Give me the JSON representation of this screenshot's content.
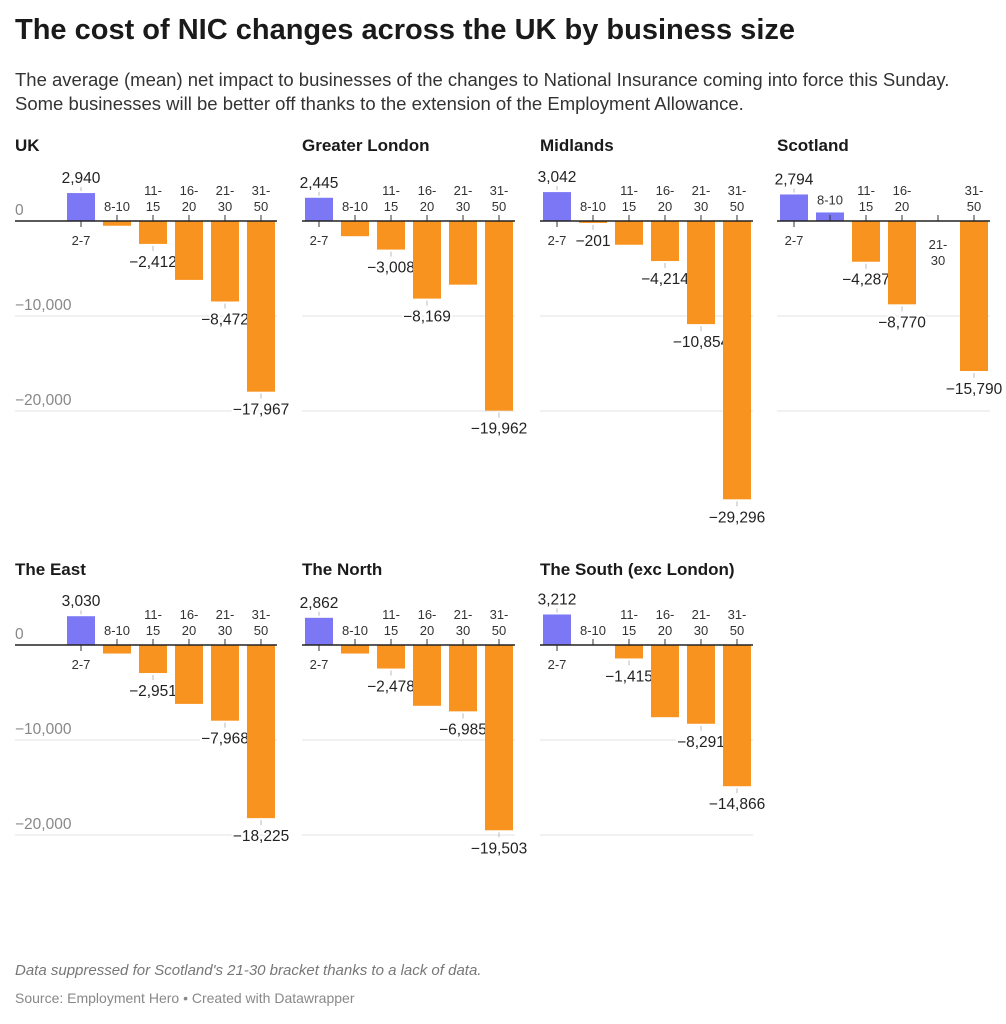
{
  "title": "The cost of NIC changes across the UK by business size",
  "subtitle": "The average (mean) net impact to businesses of the changes to National Insurance coming into force this Sunday. Some businesses will be better off thanks to the extension of the Employment Allowance.",
  "note": "Data suppressed for Scotland's 21-30 bracket thanks to a lack of data.",
  "source": "Source: Employment Hero • Created with Datawrapper",
  "colors": {
    "positive": "#7b77f5",
    "negative": "#f7931e"
  },
  "chart_data": {
    "type": "bar",
    "categories": [
      "2-7",
      "8-10",
      "11-15",
      "16-20",
      "21-30",
      "31-50"
    ],
    "y_ticks": [
      0,
      -10000,
      -20000
    ],
    "y_tick_labels": [
      "0",
      "−10,000",
      "−20,000"
    ],
    "grid": true,
    "panels": [
      {
        "name": "UK",
        "values": [
          2940,
          -500,
          -2412,
          -6200,
          -8472,
          -17967
        ],
        "labeled": [
          0,
          2,
          4,
          5
        ]
      },
      {
        "name": "Greater London",
        "values": [
          2445,
          -1600,
          -3008,
          -8169,
          -6700,
          -19962
        ],
        "labeled": [
          0,
          2,
          3,
          5
        ]
      },
      {
        "name": "Midlands",
        "values": [
          3042,
          -201,
          -2500,
          -4214,
          -10854,
          -29296
        ],
        "labeled": [
          0,
          1,
          3,
          4,
          5
        ]
      },
      {
        "name": "Scotland",
        "values": [
          2794,
          900,
          -4287,
          -8770,
          null,
          -15790
        ],
        "labeled": [
          0,
          2,
          3,
          5
        ]
      },
      {
        "name": "The East",
        "values": [
          3030,
          -900,
          -2951,
          -6200,
          -7968,
          -18225
        ],
        "labeled": [
          0,
          2,
          4,
          5
        ]
      },
      {
        "name": "The North",
        "values": [
          2862,
          -900,
          -2478,
          -6400,
          -6985,
          -19503
        ],
        "labeled": [
          0,
          2,
          4,
          5
        ]
      },
      {
        "name": "The South (exc London)",
        "values": [
          3212,
          0,
          -1415,
          -7600,
          -8291,
          -14866
        ],
        "labeled": [
          0,
          2,
          4,
          5
        ]
      }
    ]
  }
}
